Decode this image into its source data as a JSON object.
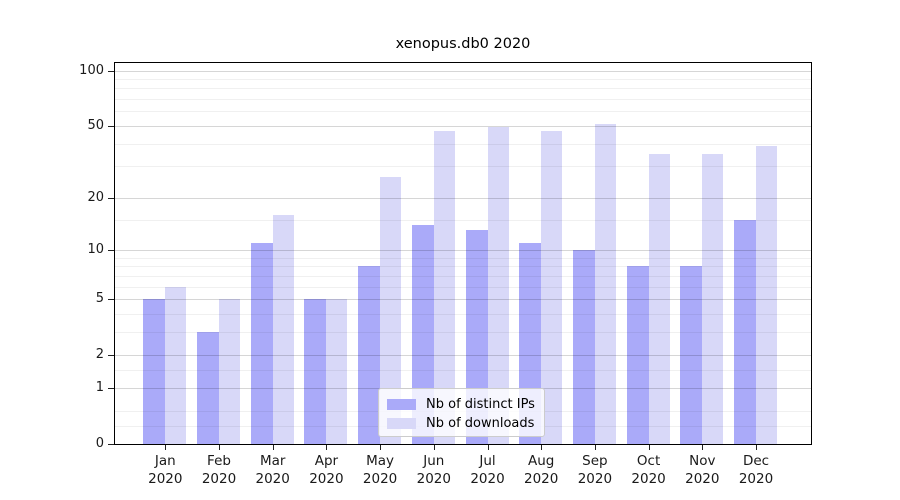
{
  "title": "xenopus.db0 2020",
  "chart_data": {
    "type": "bar",
    "title": "xenopus.db0 2020",
    "categories": [
      "Jan",
      "Feb",
      "Mar",
      "Apr",
      "May",
      "Jun",
      "Jul",
      "Aug",
      "Sep",
      "Oct",
      "Nov",
      "Dec"
    ],
    "category_year": "2020",
    "series": [
      {
        "name": "Nb of distinct IPs",
        "color": "#aaaaf9",
        "values": [
          5,
          3,
          11,
          5,
          8,
          14,
          13,
          11,
          10,
          8,
          8,
          15
        ]
      },
      {
        "name": "Nb of downloads",
        "color": "#d8d8f8",
        "values": [
          6,
          5,
          16,
          5,
          26,
          47,
          49,
          47,
          51,
          35,
          35,
          39
        ]
      }
    ],
    "xlabel": "",
    "ylabel": "",
    "y_axis": {
      "scale": "log1p",
      "tick_labels": [
        "100",
        "50",
        "20",
        "10",
        "5",
        "2",
        "1",
        "0"
      ],
      "tick_values": [
        100,
        50,
        20,
        10,
        5,
        2,
        1,
        0
      ],
      "minor_gridlines": [
        0.25,
        0.5,
        1.5,
        3,
        4,
        6,
        7,
        8,
        9,
        15,
        30,
        40,
        60,
        70,
        80,
        90
      ],
      "ylim": [
        0,
        111
      ]
    },
    "grid": true,
    "legend_position": "bottom-center"
  },
  "colors": {
    "bar_ips": "#aaaaf9",
    "bar_downloads": "#d8d8f8",
    "grid_major": "rgba(0,0,0,0.16)",
    "grid_minor": "rgba(0,0,0,0.06)",
    "axis": "#000000",
    "text": "#1a1a1a",
    "legend_border": "#cccccc",
    "legend_bg": "rgba(255,255,255,0.8)"
  }
}
